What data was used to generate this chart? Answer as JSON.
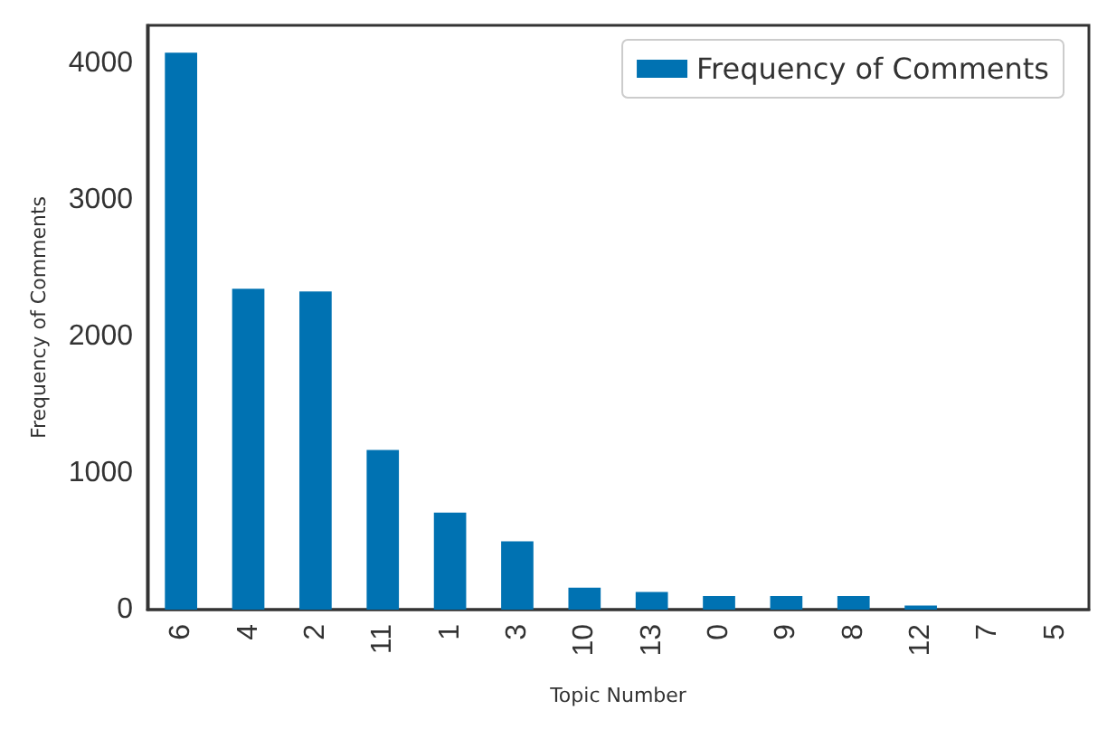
{
  "chart_data": {
    "type": "bar",
    "xlabel": "Topic Number",
    "ylabel": "Frequency of Comments",
    "categories": [
      "6",
      "4",
      "2",
      "11",
      "1",
      "3",
      "10",
      "13",
      "0",
      "9",
      "8",
      "12",
      "7",
      "5"
    ],
    "series": [
      {
        "name": "Frequency of Comments",
        "color": "#0072b2",
        "values": [
          4080,
          2350,
          2330,
          1170,
          710,
          500,
          160,
          130,
          100,
          100,
          100,
          30,
          0,
          0
        ]
      }
    ],
    "ylim": [
      0,
      4280
    ],
    "yticks": [
      0,
      1000,
      2000,
      3000,
      4000
    ],
    "grid": false,
    "legend": "top right"
  }
}
